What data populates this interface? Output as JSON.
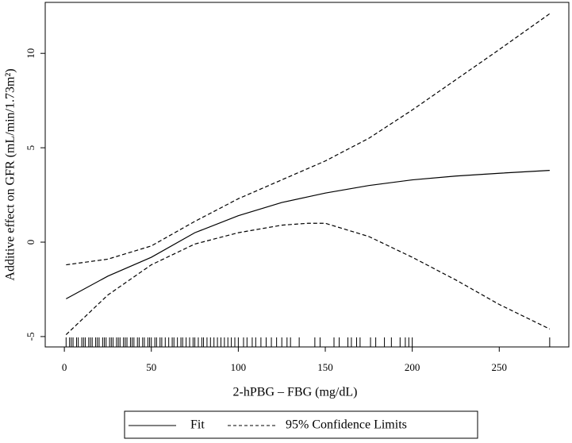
{
  "chart_data": {
    "type": "line",
    "x_label": "2-hPBG – FBG (mg/dL)",
    "y_label": "Additive effect on GFR (mL/min/1.73m²)",
    "x": [
      1,
      25,
      50,
      75,
      100,
      125,
      140,
      150,
      175,
      200,
      225,
      250,
      279
    ],
    "series": [
      {
        "name": "Fit",
        "color": "#000000",
        "values": [
          -3.0,
          -1.8,
          -0.8,
          0.5,
          1.4,
          2.1,
          2.4,
          2.6,
          3.0,
          3.3,
          3.5,
          3.65,
          3.8
        ]
      },
      {
        "name": "95% Confidence Limits",
        "color": "#000000",
        "dashed": true,
        "upper": [
          -1.2,
          -0.9,
          -0.2,
          1.1,
          2.3,
          3.3,
          3.9,
          4.3,
          5.5,
          7.0,
          8.6,
          10.2,
          12.1
        ],
        "lower": [
          -4.9,
          -2.8,
          -1.2,
          -0.1,
          0.5,
          0.9,
          1.0,
          1.0,
          0.3,
          -0.8,
          -2.0,
          -3.3,
          -4.6
        ]
      }
    ],
    "rug": [
      1,
      3,
      4,
      5,
      7,
      8,
      10,
      11,
      12,
      14,
      15,
      16,
      18,
      19,
      20,
      22,
      23,
      24,
      26,
      27,
      28,
      30,
      31,
      32,
      34,
      35,
      36,
      38,
      39,
      40,
      42,
      43,
      45,
      46,
      48,
      49,
      50,
      52,
      53,
      55,
      56,
      58,
      60,
      62,
      63,
      65,
      67,
      68,
      70,
      72,
      74,
      75,
      77,
      79,
      80,
      82,
      84,
      86,
      88,
      90,
      92,
      94,
      96,
      98,
      100,
      103,
      105,
      108,
      110,
      113,
      116,
      119,
      122,
      125,
      128,
      130,
      135,
      144,
      147,
      155,
      158,
      163,
      165,
      168,
      170,
      176,
      179,
      184,
      188,
      193,
      196,
      198,
      200,
      279
    ],
    "xlim": [
      -11,
      290
    ],
    "ylim": [
      -5.55,
      12.7
    ],
    "xticks": [
      0,
      50,
      100,
      150,
      200,
      250
    ],
    "yticks": [
      -5,
      0,
      5,
      10
    ]
  }
}
